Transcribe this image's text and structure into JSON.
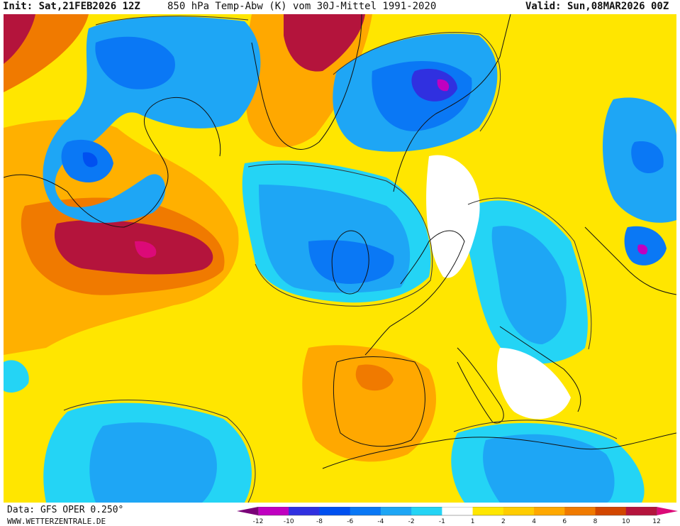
{
  "header": {
    "init": "Init: Sat,21FEB2026 12Z",
    "title": "850 hPa Temp-Abw (K) vom 30J-Mittel 1991-2020",
    "valid": "Valid: Sun,08MAR2026 00Z"
  },
  "footer": {
    "data_source": "Data: GFS OPER 0.250°",
    "website": "WWW.WETTERZENTRALE.DE"
  },
  "legend": {
    "ticks": [
      "-12",
      "-10",
      "-8",
      "-6",
      "-4",
      "-2",
      "-1",
      "1",
      "2",
      "4",
      "6",
      "8",
      "10",
      "12"
    ],
    "colors": [
      "#7a0078",
      "#c000c0",
      "#3030e0",
      "#0050f0",
      "#0a78f5",
      "#1ea6f5",
      "#24d4f5",
      "#ffffff",
      "#ffe600",
      "#ffcc00",
      "#ffa800",
      "#f07a00",
      "#d24600",
      "#b4143c",
      "#dc0a78"
    ]
  }
}
